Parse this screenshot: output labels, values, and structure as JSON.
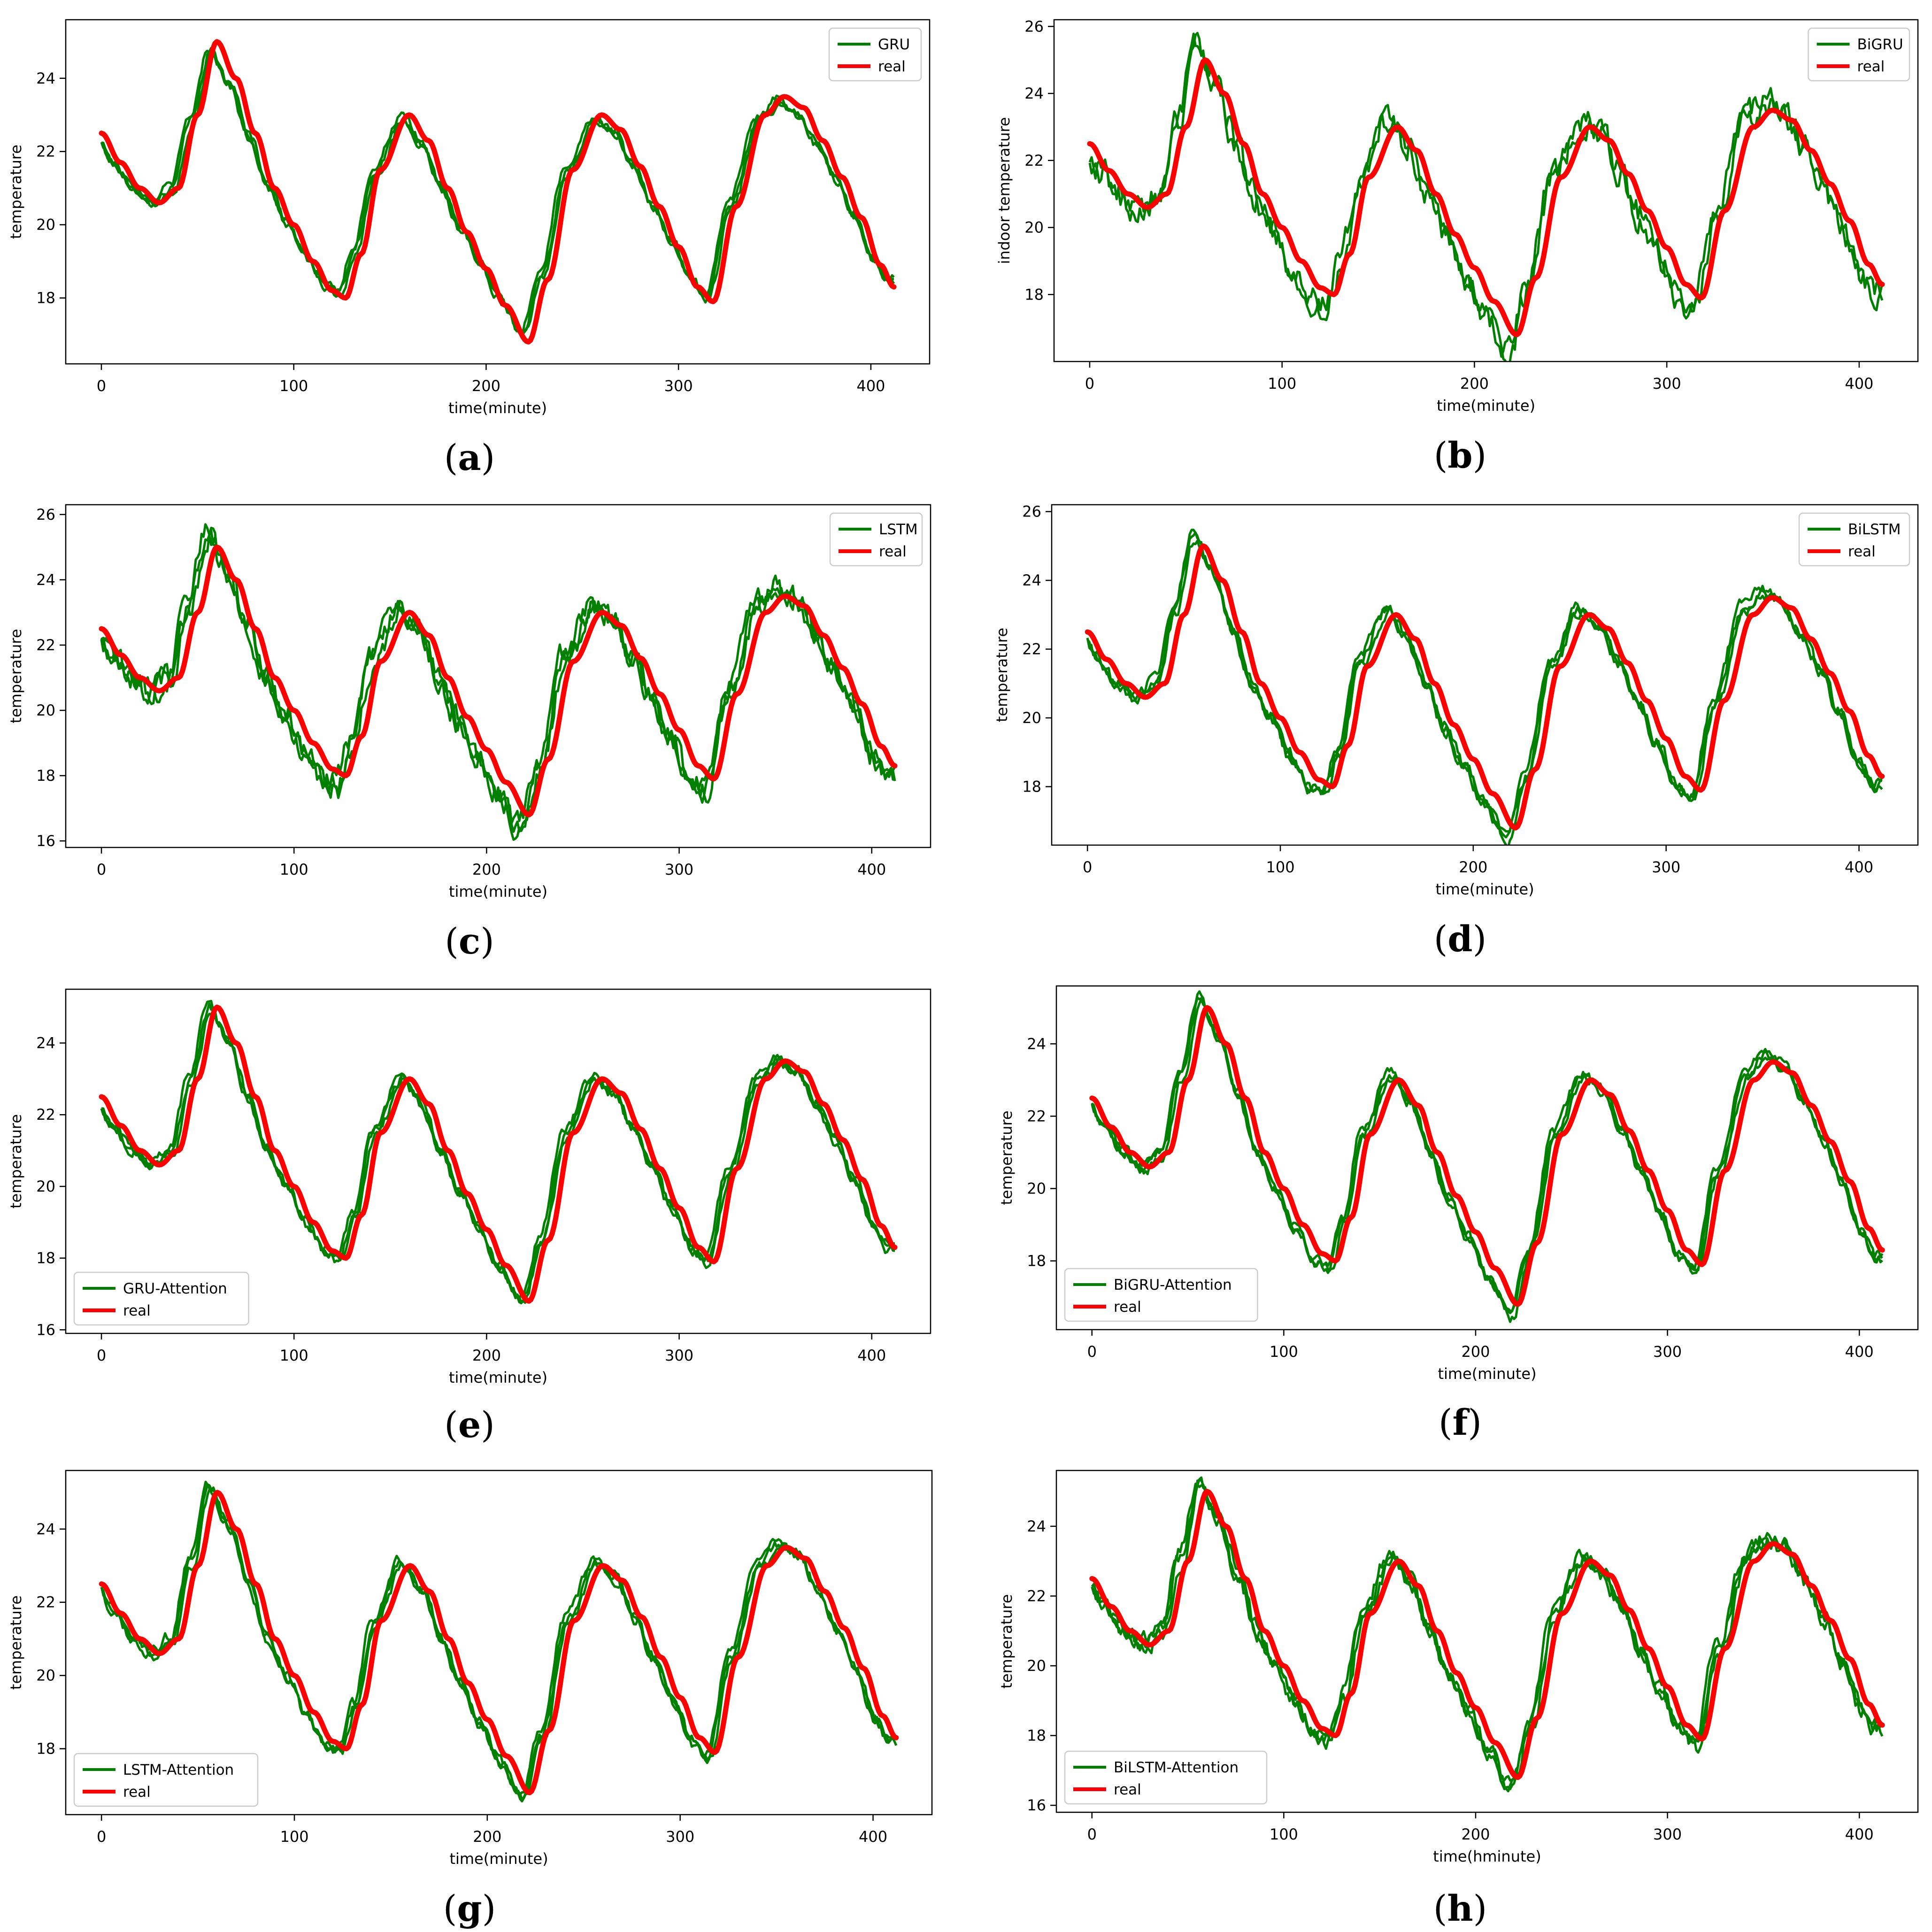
{
  "colors": {
    "predicted": "#008000",
    "real": "#ff0000",
    "axis": "#000000"
  },
  "x_range": [
    0,
    412
  ],
  "real_curve": {
    "x": [
      0,
      10,
      20,
      30,
      40,
      50,
      60,
      70,
      80,
      90,
      100,
      110,
      120,
      127,
      135,
      145,
      160,
      170,
      180,
      190,
      200,
      210,
      222,
      232,
      245,
      260,
      270,
      280,
      290,
      300,
      310,
      318,
      330,
      345,
      355,
      365,
      375,
      385,
      395,
      405,
      412
    ],
    "y": [
      22.5,
      21.7,
      21.0,
      20.6,
      21.0,
      23.0,
      25.0,
      24.0,
      22.5,
      21.0,
      20.0,
      19.0,
      18.2,
      18.0,
      19.2,
      21.5,
      23.0,
      22.3,
      21.0,
      19.8,
      18.8,
      17.8,
      16.8,
      18.5,
      21.5,
      23.0,
      22.6,
      21.6,
      20.5,
      19.4,
      18.3,
      17.9,
      20.5,
      23.0,
      23.5,
      23.2,
      22.3,
      21.3,
      20.2,
      18.9,
      18.3
    ]
  },
  "chart_data": [
    {
      "id": "a",
      "caption": "a",
      "type": "line",
      "xlabel": "time(minute)",
      "ylabel": "temperature",
      "ylim": [
        16.2,
        25.6
      ],
      "yticks": [
        18,
        20,
        22,
        24
      ],
      "xticks": [
        0,
        100,
        200,
        300,
        400
      ],
      "legend": {
        "placement": "top-right",
        "entries": [
          "GRU",
          "real"
        ]
      },
      "series": [
        {
          "name": "GRU",
          "bias": -0.3,
          "lead": 2.5,
          "noise": 0.1,
          "runs": 3
        },
        {
          "name": "real"
        }
      ]
    },
    {
      "id": "b",
      "caption": "b",
      "type": "line",
      "xlabel": "time(minute)",
      "ylabel": "indoor temperature",
      "ylim": [
        16.0,
        26.2
      ],
      "yticks": [
        18,
        20,
        22,
        24,
        26
      ],
      "xticks": [
        0,
        100,
        200,
        300,
        400
      ],
      "legend": {
        "placement": "top-right",
        "entries": [
          "BiGRU",
          "real"
        ]
      },
      "series": [
        {
          "name": "BiGRU",
          "bias": 0.6,
          "lead": 4.0,
          "noise": 0.35,
          "runs": 2
        },
        {
          "name": "real"
        }
      ]
    },
    {
      "id": "c",
      "caption": "c",
      "type": "line",
      "xlabel": "time(minute)",
      "ylabel": "temperature",
      "ylim": [
        15.8,
        26.3
      ],
      "yticks": [
        16,
        18,
        20,
        22,
        24,
        26
      ],
      "xticks": [
        0,
        100,
        200,
        300,
        400
      ],
      "legend": {
        "placement": "top-right",
        "entries": [
          "LSTM",
          "real"
        ]
      },
      "series": [
        {
          "name": "LSTM",
          "bias": 0.5,
          "lead": 4.0,
          "noise": 0.3,
          "runs": 3
        },
        {
          "name": "real"
        }
      ]
    },
    {
      "id": "d",
      "caption": "d",
      "type": "line",
      "xlabel": "time(minute)",
      "ylabel": "temperature",
      "ylim": [
        16.3,
        26.2
      ],
      "yticks": [
        18,
        20,
        22,
        24,
        26
      ],
      "xticks": [
        0,
        100,
        200,
        300,
        400
      ],
      "legend": {
        "placement": "top-right",
        "entries": [
          "BiLSTM",
          "real"
        ]
      },
      "series": [
        {
          "name": "BiLSTM",
          "bias": 0.4,
          "lead": 4.0,
          "noise": 0.15,
          "runs": 3
        },
        {
          "name": "real"
        }
      ]
    },
    {
      "id": "e",
      "caption": "e",
      "type": "line",
      "xlabel": "time(minute)",
      "ylabel": "temperature",
      "ylim": [
        15.9,
        25.5
      ],
      "yticks": [
        16,
        18,
        20,
        22,
        24
      ],
      "xticks": [
        0,
        100,
        200,
        300,
        400
      ],
      "legend": {
        "placement": "bottom-left",
        "entries": [
          "GRU-Attention",
          "real"
        ]
      },
      "series": [
        {
          "name": "GRU-Attention",
          "bias": 0.0,
          "lead": 3.0,
          "noise": 0.12,
          "runs": 3
        },
        {
          "name": "real"
        }
      ]
    },
    {
      "id": "f",
      "caption": "f",
      "type": "line",
      "xlabel": "time(minute)",
      "ylabel": "temperature",
      "ylim": [
        16.1,
        25.6
      ],
      "yticks": [
        18,
        20,
        22,
        24
      ],
      "xticks": [
        0,
        100,
        200,
        300,
        400
      ],
      "legend": {
        "placement": "bottom-left",
        "entries": [
          "BiGRU-Attention",
          "real"
        ]
      },
      "series": [
        {
          "name": "BiGRU-Attention",
          "bias": 0.35,
          "lead": 3.0,
          "noise": 0.12,
          "runs": 3
        },
        {
          "name": "real"
        }
      ]
    },
    {
      "id": "g",
      "caption": "g",
      "type": "line",
      "xlabel": "time(minute)",
      "ylabel": "temperature",
      "ylim": [
        16.2,
        25.6
      ],
      "yticks": [
        18,
        20,
        22,
        24
      ],
      "xticks": [
        0,
        100,
        200,
        300,
        400
      ],
      "legend": {
        "placement": "bottom-left",
        "entries": [
          "LSTM-Attention",
          "real"
        ]
      },
      "series": [
        {
          "name": "LSTM-Attention",
          "bias": 0.2,
          "lead": 3.0,
          "noise": 0.12,
          "runs": 3
        },
        {
          "name": "real"
        }
      ]
    },
    {
      "id": "h",
      "caption": "h",
      "type": "line",
      "xlabel": "time(hminute)",
      "ylabel": "temperature",
      "ylim": [
        15.8,
        25.6
      ],
      "yticks": [
        16,
        18,
        20,
        22,
        24
      ],
      "xticks": [
        0,
        100,
        200,
        300,
        400
      ],
      "legend": {
        "placement": "bottom-left",
        "entries": [
          "BiLSTM-Attention",
          "real"
        ]
      },
      "series": [
        {
          "name": "BiLSTM-Attention",
          "bias": 0.3,
          "lead": 3.0,
          "noise": 0.2,
          "runs": 3
        },
        {
          "name": "real"
        }
      ]
    }
  ]
}
